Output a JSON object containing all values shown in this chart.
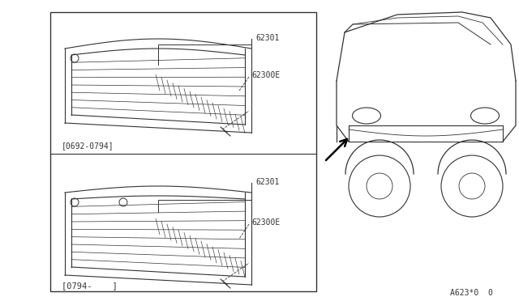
{
  "bg_color": "#ffffff",
  "line_color": "#333333",
  "part_label_1": "62301",
  "part_label_2": "62300E",
  "date_label_top": "[0692-0794]",
  "date_label_bottom": "[0794-    ]",
  "ref_code": "A623*0  0",
  "fig_width": 6.4,
  "fig_height": 3.72,
  "dpi": 100
}
